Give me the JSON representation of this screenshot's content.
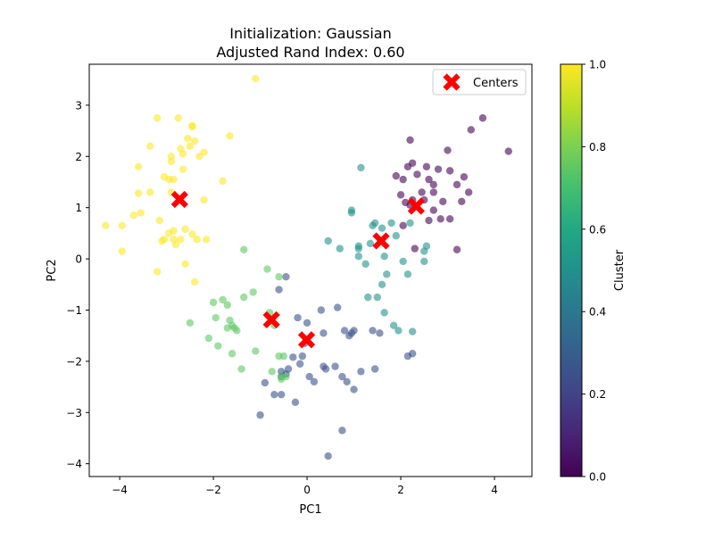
{
  "chart_data": {
    "type": "scatter",
    "title_line1": "Initialization: Gaussian",
    "title_line2": "Adjusted Rand Index: 0.60",
    "xlabel": "PC1",
    "ylabel": "PC2",
    "xlim": [
      -4.65,
      4.8
    ],
    "ylim": [
      -4.25,
      3.8
    ],
    "xticks": [
      -4,
      -2,
      0,
      2,
      4
    ],
    "yticks": [
      -4,
      -3,
      -2,
      -1,
      0,
      1,
      2,
      3
    ],
    "legend": {
      "label": "Centers",
      "position": "top-right"
    },
    "colorbar": {
      "label": "Cluster",
      "range": [
        0.0,
        1.0
      ],
      "ticks": [
        "0.0",
        "0.2",
        "0.4",
        "0.6",
        "0.8",
        "1.0"
      ],
      "colormap": "viridis"
    },
    "center_color": "#ff0000",
    "centers": [
      {
        "x": -2.72,
        "y": 1.16
      },
      {
        "x": -0.76,
        "y": -1.19
      },
      {
        "x": -0.01,
        "y": -1.58
      },
      {
        "x": 1.58,
        "y": 0.35
      },
      {
        "x": 2.33,
        "y": 1.03
      }
    ],
    "series": [
      {
        "cluster_value": 0.0,
        "color": "#440154",
        "points": [
          [
            1.9,
            1.62
          ],
          [
            2.05,
            1.55
          ],
          [
            2.15,
            1.8
          ],
          [
            2.2,
            2.32
          ],
          [
            2.25,
            1.87
          ],
          [
            2.35,
            1.65
          ],
          [
            2.45,
            1.3
          ],
          [
            2.55,
            1.8
          ],
          [
            2.6,
            1.55
          ],
          [
            2.7,
            1.45
          ],
          [
            2.8,
            1.75
          ],
          [
            2.9,
            1.12
          ],
          [
            3.0,
            2.12
          ],
          [
            3.05,
            1.72
          ],
          [
            3.2,
            1.45
          ],
          [
            3.35,
            1.6
          ],
          [
            3.5,
            2.52
          ],
          [
            3.75,
            2.75
          ],
          [
            4.3,
            2.1
          ],
          [
            3.45,
            1.3
          ],
          [
            3.3,
            1.12
          ],
          [
            3.05,
            0.78
          ],
          [
            2.85,
            0.78
          ],
          [
            2.7,
            0.95
          ],
          [
            2.6,
            0.75
          ],
          [
            2.0,
            1.25
          ],
          [
            2.1,
            1.1
          ],
          [
            2.25,
            1.15
          ],
          [
            2.5,
            1.15
          ],
          [
            2.05,
            0.65
          ],
          [
            2.3,
            0.2
          ],
          [
            3.2,
            0.18
          ],
          [
            2.2,
            1.05
          ],
          [
            2.7,
            1.3
          ]
        ]
      },
      {
        "cluster_value": 0.2,
        "color": "#3b528b",
        "points": [
          [
            -1.0,
            -3.05
          ],
          [
            -0.9,
            -2.42
          ],
          [
            -0.7,
            -2.65
          ],
          [
            -0.55,
            -2.65
          ],
          [
            -0.55,
            -2.3
          ],
          [
            -0.55,
            -2.2
          ],
          [
            -0.45,
            -2.25
          ],
          [
            -0.4,
            -2.15
          ],
          [
            -0.3,
            -1.92
          ],
          [
            -0.25,
            -2.8
          ],
          [
            -0.15,
            -2.05
          ],
          [
            -0.1,
            -1.9
          ],
          [
            -0.05,
            -1.65
          ],
          [
            0.05,
            -2.3
          ],
          [
            0.15,
            -2.4
          ],
          [
            -0.2,
            -1.15
          ],
          [
            0.0,
            -1.25
          ],
          [
            0.3,
            -1.0
          ],
          [
            0.35,
            -2.1
          ],
          [
            0.4,
            -2.15
          ],
          [
            0.45,
            -3.85
          ],
          [
            0.6,
            -2.1
          ],
          [
            0.75,
            -2.3
          ],
          [
            0.8,
            -1.4
          ],
          [
            0.85,
            -2.4
          ],
          [
            0.9,
            -1.5
          ],
          [
            0.95,
            -1.45
          ],
          [
            1.0,
            -1.4
          ],
          [
            1.0,
            -2.55
          ],
          [
            1.15,
            -2.2
          ],
          [
            1.4,
            -1.4
          ],
          [
            1.55,
            -1.45
          ],
          [
            0.65,
            -0.95
          ],
          [
            -0.6,
            -0.6
          ],
          [
            0.75,
            -3.35
          ],
          [
            1.45,
            -2.15
          ],
          [
            -0.45,
            -0.35
          ],
          [
            2.15,
            -1.9
          ],
          [
            2.25,
            -1.85
          ],
          [
            0.35,
            -1.45
          ]
        ]
      },
      {
        "cluster_value": 0.5,
        "color": "#21918c",
        "points": [
          [
            0.45,
            0.35
          ],
          [
            0.7,
            0.2
          ],
          [
            0.95,
            0.9
          ],
          [
            0.95,
            0.95
          ],
          [
            1.1,
            0.25
          ],
          [
            1.1,
            0.05
          ],
          [
            1.15,
            1.78
          ],
          [
            1.25,
            -0.1
          ],
          [
            1.35,
            0.3
          ],
          [
            1.4,
            0.65
          ],
          [
            1.45,
            0.7
          ],
          [
            1.6,
            0.6
          ],
          [
            1.65,
            0.05
          ],
          [
            1.8,
            0.7
          ],
          [
            1.7,
            -0.3
          ],
          [
            1.6,
            -0.5
          ],
          [
            1.5,
            -0.75
          ],
          [
            1.65,
            -1.05
          ],
          [
            1.85,
            -1.3
          ],
          [
            1.95,
            -1.4
          ],
          [
            2.05,
            -0.05
          ],
          [
            2.15,
            -0.3
          ],
          [
            2.2,
            0.7
          ],
          [
            2.5,
            0.15
          ],
          [
            2.5,
            -0.05
          ],
          [
            2.55,
            0.25
          ],
          [
            2.25,
            -1.42
          ],
          [
            1.9,
            0.45
          ],
          [
            1.3,
            -0.75
          ],
          [
            1.1,
            0.2
          ]
        ]
      },
      {
        "cluster_value": 0.75,
        "color": "#5ec962",
        "points": [
          [
            -2.5,
            -1.25
          ],
          [
            -2.1,
            -1.55
          ],
          [
            -2.0,
            -0.85
          ],
          [
            -1.95,
            -1.15
          ],
          [
            -1.9,
            -1.7
          ],
          [
            -1.8,
            -0.8
          ],
          [
            -1.7,
            -0.9
          ],
          [
            -1.7,
            -1.35
          ],
          [
            -1.65,
            -1.2
          ],
          [
            -1.6,
            -1.85
          ],
          [
            -1.6,
            -1.3
          ],
          [
            -1.5,
            -1.4
          ],
          [
            -1.4,
            -2.15
          ],
          [
            -1.35,
            -0.75
          ],
          [
            -1.35,
            0.18
          ],
          [
            -1.15,
            -0.65
          ],
          [
            -1.1,
            -1.8
          ],
          [
            -0.85,
            -0.2
          ],
          [
            -0.8,
            -1.05
          ],
          [
            -0.75,
            -2.2
          ],
          [
            -0.6,
            -1.9
          ],
          [
            -0.55,
            -2.35
          ],
          [
            -0.45,
            -2.3
          ],
          [
            -0.6,
            -0.35
          ],
          [
            -0.7,
            -1.3
          ],
          [
            -0.5,
            -1.9
          ],
          [
            -1.55,
            -1.35
          ],
          [
            -0.55,
            -2.3
          ]
        ]
      },
      {
        "cluster_value": 1.0,
        "color": "#fde725",
        "points": [
          [
            -4.3,
            0.65
          ],
          [
            -3.95,
            0.65
          ],
          [
            -3.95,
            0.15
          ],
          [
            -3.7,
            0.85
          ],
          [
            -3.6,
            1.8
          ],
          [
            -3.6,
            1.28
          ],
          [
            -3.55,
            0.9
          ],
          [
            -3.35,
            2.2
          ],
          [
            -3.35,
            1.3
          ],
          [
            -3.2,
            2.75
          ],
          [
            -3.2,
            -0.25
          ],
          [
            -3.15,
            0.75
          ],
          [
            -3.1,
            0.35
          ],
          [
            -3.05,
            0.38
          ],
          [
            -3.05,
            1.6
          ],
          [
            -2.95,
            1.55
          ],
          [
            -2.95,
            0.5
          ],
          [
            -2.9,
            2.0
          ],
          [
            -2.9,
            1.9
          ],
          [
            -2.85,
            0.55
          ],
          [
            -2.85,
            1.55
          ],
          [
            -2.85,
            0.38
          ],
          [
            -2.8,
            0.28
          ],
          [
            -2.75,
            2.75
          ],
          [
            -2.7,
            2.15
          ],
          [
            -2.7,
            0.38
          ],
          [
            -2.65,
            2.05
          ],
          [
            -2.65,
            1.75
          ],
          [
            -2.6,
            -0.1
          ],
          [
            -2.6,
            0.58
          ],
          [
            -2.55,
            2.35
          ],
          [
            -2.5,
            2.2
          ],
          [
            -2.45,
            2.58
          ],
          [
            -2.45,
            0.48
          ],
          [
            -2.4,
            2.3
          ],
          [
            -2.4,
            -0.45
          ],
          [
            -2.35,
            0.38
          ],
          [
            -2.3,
            2.0
          ],
          [
            -2.2,
            1.15
          ],
          [
            -2.2,
            2.08
          ],
          [
            -2.15,
            0.38
          ],
          [
            -1.8,
            1.52
          ],
          [
            -1.65,
            2.4
          ],
          [
            -1.1,
            3.52
          ],
          [
            -2.45,
            2.6
          ],
          [
            -2.9,
            1.3
          ]
        ]
      }
    ]
  }
}
